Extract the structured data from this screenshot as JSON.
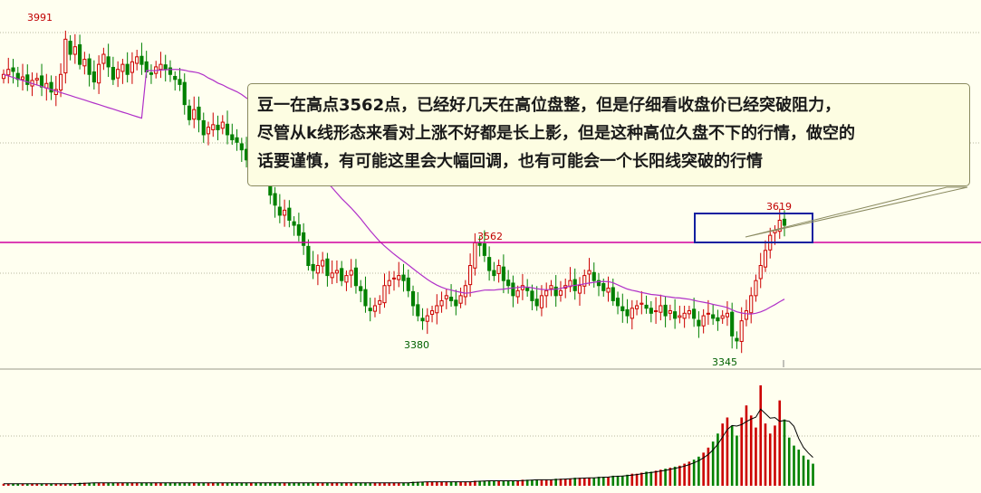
{
  "annotation": {
    "lines": [
      "豆一在高点3562点，已经好几天在高位盘整，但是仔细看收盘价已经突破阻力，",
      "尽管从k线形态来看对上涨不好都是长上影，但是这种高位久盘不下的行情，做空的",
      "话要谨慎，有可能这里会大幅回调，也有可能会一个长阳线突破的行情"
    ]
  },
  "chart_data": {
    "type": "candlestick",
    "title": "",
    "price_range": [
      3330,
      4010
    ],
    "resistance_level": 3520,
    "annotated_prices": [
      {
        "label": "3991",
        "value": 3991,
        "position": "above"
      },
      {
        "label": "3562",
        "value": 3562,
        "position": "above"
      },
      {
        "label": "3380",
        "value": 3380,
        "position": "below"
      },
      {
        "label": "3345",
        "value": 3345,
        "position": "below"
      },
      {
        "label": "3619",
        "value": 3619,
        "position": "above"
      }
    ],
    "candles_close": [
      3880,
      3890,
      3886,
      3870,
      3875,
      3860,
      3868,
      3872,
      3855,
      3862,
      3845,
      3850,
      3880,
      3950,
      3920,
      3935,
      3900,
      3910,
      3880,
      3865,
      3900,
      3920,
      3895,
      3870,
      3890,
      3900,
      3880,
      3905,
      3915,
      3900,
      3885,
      3880,
      3895,
      3900,
      3890,
      3880,
      3870,
      3860,
      3820,
      3790,
      3810,
      3790,
      3760,
      3775,
      3780,
      3770,
      3785,
      3760,
      3750,
      3745,
      3730,
      3710,
      3720,
      3700,
      3680,
      3670,
      3640,
      3620,
      3600,
      3610,
      3590,
      3580,
      3560,
      3540,
      3500,
      3490,
      3500,
      3510,
      3480,
      3485,
      3490,
      3470,
      3480,
      3490,
      3460,
      3450,
      3420,
      3410,
      3420,
      3430,
      3460,
      3470,
      3475,
      3480,
      3470,
      3450,
      3420,
      3400,
      3390,
      3400,
      3410,
      3420,
      3430,
      3440,
      3430,
      3420,
      3440,
      3460,
      3500,
      3545,
      3540,
      3520,
      3490,
      3480,
      3500,
      3470,
      3460,
      3440,
      3450,
      3460,
      3450,
      3430,
      3420,
      3440,
      3450,
      3460,
      3440,
      3450,
      3460,
      3470,
      3450,
      3460,
      3480,
      3490,
      3470,
      3460,
      3450,
      3455,
      3430,
      3420,
      3410,
      3400,
      3415,
      3420,
      3425,
      3415,
      3405,
      3410,
      3420,
      3400,
      3410,
      3395,
      3400,
      3405,
      3410,
      3395,
      3380,
      3400,
      3405,
      3395,
      3390,
      3400,
      3405,
      3360,
      3350,
      3390,
      3410,
      3440,
      3470,
      3500,
      3530,
      3560,
      3570,
      3590,
      3580
    ],
    "volume_relative": [
      2,
      2,
      2,
      2,
      2,
      2,
      2,
      2,
      2,
      2,
      2,
      2,
      2,
      2,
      2,
      2,
      3,
      3,
      3,
      3,
      3,
      3,
      3,
      3,
      3,
      3,
      3,
      3,
      3,
      3,
      3,
      3,
      3,
      3,
      3,
      3,
      3,
      3,
      3,
      3,
      3,
      3,
      3,
      3,
      3,
      3,
      3,
      3,
      3,
      3,
      3,
      3,
      3,
      3,
      3,
      3,
      3,
      3,
      3,
      3,
      3,
      3,
      3,
      3,
      3,
      3,
      3,
      3,
      3,
      3,
      3,
      3,
      3,
      3,
      3,
      3,
      3,
      3,
      3,
      3,
      3,
      3,
      3,
      3,
      3,
      3,
      4,
      4,
      4,
      4,
      4,
      4,
      4,
      4,
      4,
      4,
      4,
      4,
      4,
      5,
      5,
      5,
      5,
      5,
      5,
      5,
      5,
      5,
      5,
      6,
      6,
      6,
      6,
      6,
      6,
      6,
      7,
      7,
      7,
      7,
      8,
      8,
      8,
      8,
      8,
      9,
      9,
      9,
      10,
      10,
      10,
      11,
      12,
      12,
      13,
      14,
      14,
      15,
      16,
      17,
      18,
      19,
      20,
      22,
      24,
      26,
      29,
      33,
      38,
      44,
      52,
      62,
      68,
      60,
      50,
      68,
      80,
      70,
      58,
      100,
      62,
      52,
      60,
      85,
      66,
      48,
      40,
      36,
      30,
      26,
      22
    ]
  }
}
